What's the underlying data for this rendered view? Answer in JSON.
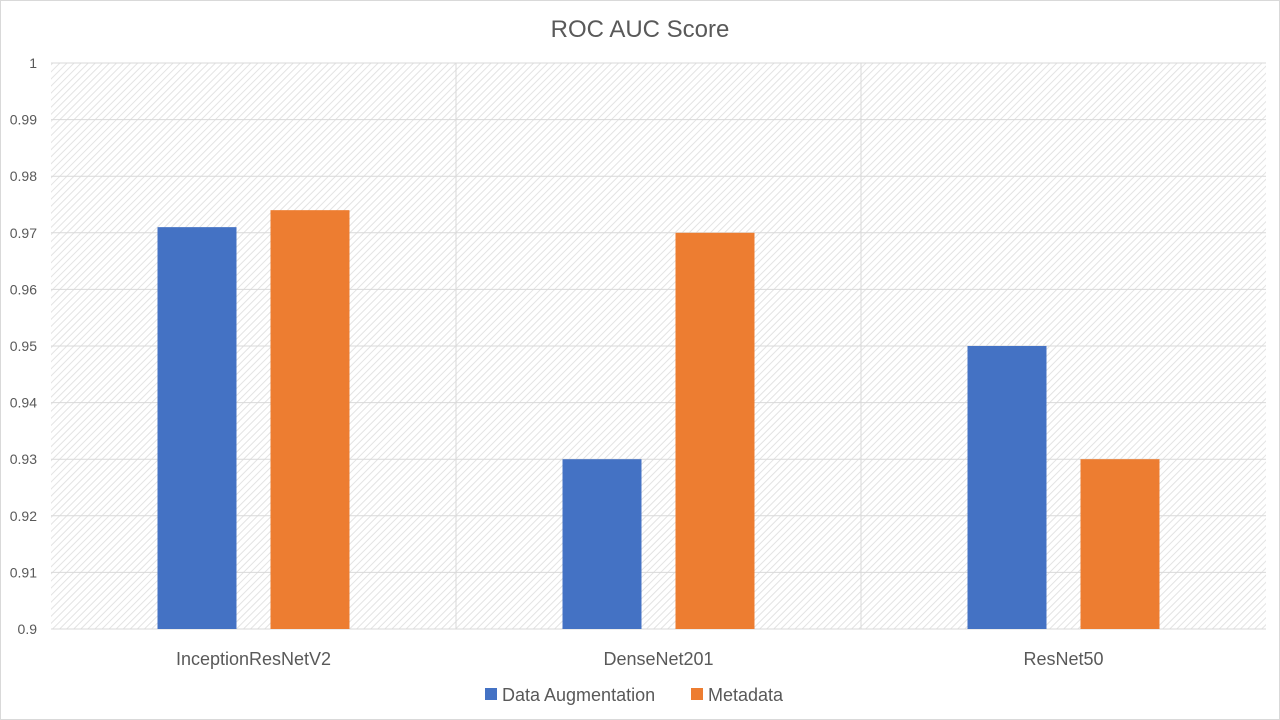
{
  "chart_data": {
    "type": "bar",
    "title": "ROC AUC Score",
    "xlabel": "",
    "ylabel": "",
    "categories": [
      "InceptionResNetV2",
      "DenseNet201",
      "ResNet50"
    ],
    "series": [
      {
        "name": "Data Augmentation",
        "color": "#4472C4",
        "values": [
          0.971,
          0.93,
          0.95
        ]
      },
      {
        "name": "Metadata",
        "color": "#ED7D31",
        "values": [
          0.974,
          0.97,
          0.93
        ]
      }
    ],
    "ylim": [
      0.9,
      1.0
    ],
    "yticks": [
      "0.9",
      "0.91",
      "0.92",
      "0.93",
      "0.94",
      "0.95",
      "0.96",
      "0.97",
      "0.98",
      "0.99",
      "1"
    ],
    "grid": true,
    "plot_background": "diagonal-hatch",
    "legend_position": "bottom"
  }
}
